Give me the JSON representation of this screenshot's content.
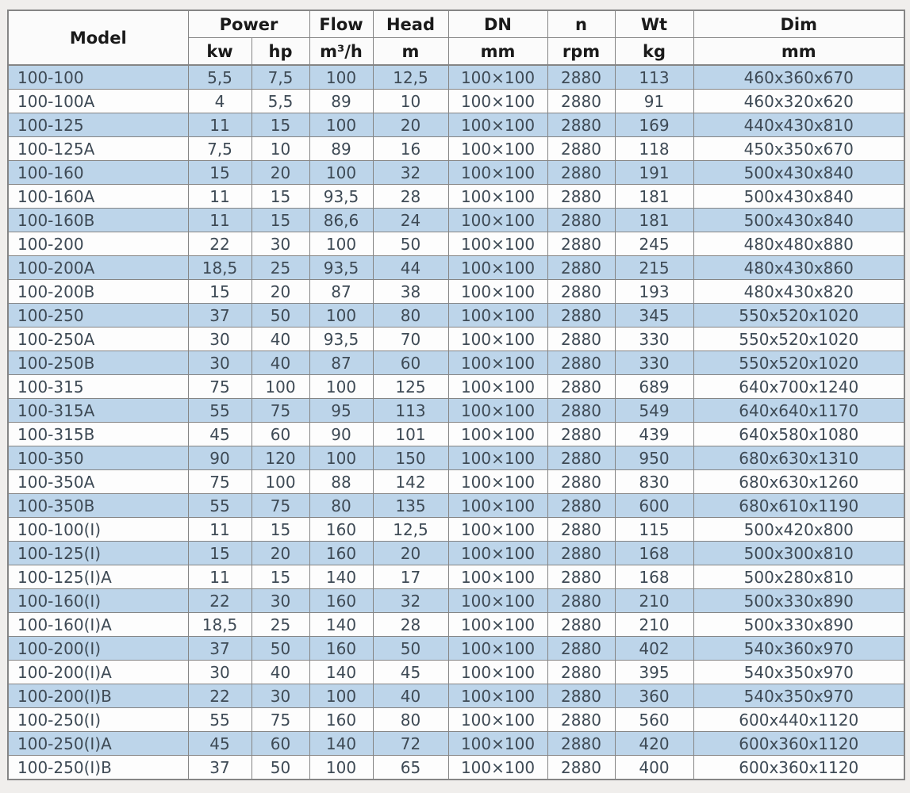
{
  "table": {
    "header": {
      "model": "Model",
      "power": "Power",
      "power_kw": "kw",
      "power_hp": "hp",
      "flow": "Flow",
      "flow_unit": "m³/h",
      "head": "Head",
      "head_unit": "m",
      "dn": "DN",
      "dn_unit": "mm",
      "speed": "n",
      "speed_unit": "rpm",
      "weight": "Wt",
      "weight_unit": "kg",
      "dim": "Dim",
      "dim_unit": "mm"
    },
    "rows": [
      [
        "100-100",
        "5,5",
        "7,5",
        "100",
        "12,5",
        "100×100",
        "2880",
        "113",
        "460x360x670"
      ],
      [
        "100-100A",
        "4",
        "5,5",
        "89",
        "10",
        "100×100",
        "2880",
        "91",
        "460x320x620"
      ],
      [
        "100-125",
        "11",
        "15",
        "100",
        "20",
        "100×100",
        "2880",
        "169",
        "440x430x810"
      ],
      [
        "100-125A",
        "7,5",
        "10",
        "89",
        "16",
        "100×100",
        "2880",
        "118",
        "450x350x670"
      ],
      [
        "100-160",
        "15",
        "20",
        "100",
        "32",
        "100×100",
        "2880",
        "191",
        "500x430x840"
      ],
      [
        "100-160A",
        "11",
        "15",
        "93,5",
        "28",
        "100×100",
        "2880",
        "181",
        "500x430x840"
      ],
      [
        "100-160B",
        "11",
        "15",
        "86,6",
        "24",
        "100×100",
        "2880",
        "181",
        "500x430x840"
      ],
      [
        "100-200",
        "22",
        "30",
        "100",
        "50",
        "100×100",
        "2880",
        "245",
        "480x480x880"
      ],
      [
        "100-200A",
        "18,5",
        "25",
        "93,5",
        "44",
        "100×100",
        "2880",
        "215",
        "480x430x860"
      ],
      [
        "100-200B",
        "15",
        "20",
        "87",
        "38",
        "100×100",
        "2880",
        "193",
        "480x430x820"
      ],
      [
        "100-250",
        "37",
        "50",
        "100",
        "80",
        "100×100",
        "2880",
        "345",
        "550x520x1020"
      ],
      [
        "100-250A",
        "30",
        "40",
        "93,5",
        "70",
        "100×100",
        "2880",
        "330",
        "550x520x1020"
      ],
      [
        "100-250B",
        "30",
        "40",
        "87",
        "60",
        "100×100",
        "2880",
        "330",
        "550x520x1020"
      ],
      [
        "100-315",
        "75",
        "100",
        "100",
        "125",
        "100×100",
        "2880",
        "689",
        "640x700x1240"
      ],
      [
        "100-315A",
        "55",
        "75",
        "95",
        "113",
        "100×100",
        "2880",
        "549",
        "640x640x1170"
      ],
      [
        "100-315B",
        "45",
        "60",
        "90",
        "101",
        "100×100",
        "2880",
        "439",
        "640x580x1080"
      ],
      [
        "100-350",
        "90",
        "120",
        "100",
        "150",
        "100×100",
        "2880",
        "950",
        "680x630x1310"
      ],
      [
        "100-350A",
        "75",
        "100",
        "88",
        "142",
        "100×100",
        "2880",
        "830",
        "680x630x1260"
      ],
      [
        "100-350B",
        "55",
        "75",
        "80",
        "135",
        "100×100",
        "2880",
        "600",
        "680x610x1190"
      ],
      [
        "100-100(I)",
        "11",
        "15",
        "160",
        "12,5",
        "100×100",
        "2880",
        "115",
        "500x420x800"
      ],
      [
        "100-125(I)",
        "15",
        "20",
        "160",
        "20",
        "100×100",
        "2880",
        "168",
        "500x300x810"
      ],
      [
        "100-125(I)A",
        "11",
        "15",
        "140",
        "17",
        "100×100",
        "2880",
        "168",
        "500x280x810"
      ],
      [
        "100-160(I)",
        "22",
        "30",
        "160",
        "32",
        "100×100",
        "2880",
        "210",
        "500x330x890"
      ],
      [
        "100-160(I)A",
        "18,5",
        "25",
        "140",
        "28",
        "100×100",
        "2880",
        "210",
        "500x330x890"
      ],
      [
        "100-200(I)",
        "37",
        "50",
        "160",
        "50",
        "100×100",
        "2880",
        "402",
        "540x360x970"
      ],
      [
        "100-200(I)A",
        "30",
        "40",
        "140",
        "45",
        "100×100",
        "2880",
        "395",
        "540x350x970"
      ],
      [
        "100-200(I)B",
        "22",
        "30",
        "100",
        "40",
        "100×100",
        "2880",
        "360",
        "540x350x970"
      ],
      [
        "100-250(I)",
        "55",
        "75",
        "160",
        "80",
        "100×100",
        "2880",
        "560",
        "600x440x1120"
      ],
      [
        "100-250(I)A",
        "45",
        "60",
        "140",
        "72",
        "100×100",
        "2880",
        "420",
        "600x360x1120"
      ],
      [
        "100-250(I)B",
        "37",
        "50",
        "100",
        "65",
        "100×100",
        "2880",
        "400",
        "600x360x1120"
      ]
    ]
  },
  "colors": {
    "stripe_blue": "#bdd5ea",
    "row_white": "#fdfdfd",
    "header_bg": "#fbfbfb",
    "grid_border": "#858585",
    "data_text": "#3e4a55",
    "header_text": "#1a1a1a",
    "page_background": "#f0eeec"
  }
}
